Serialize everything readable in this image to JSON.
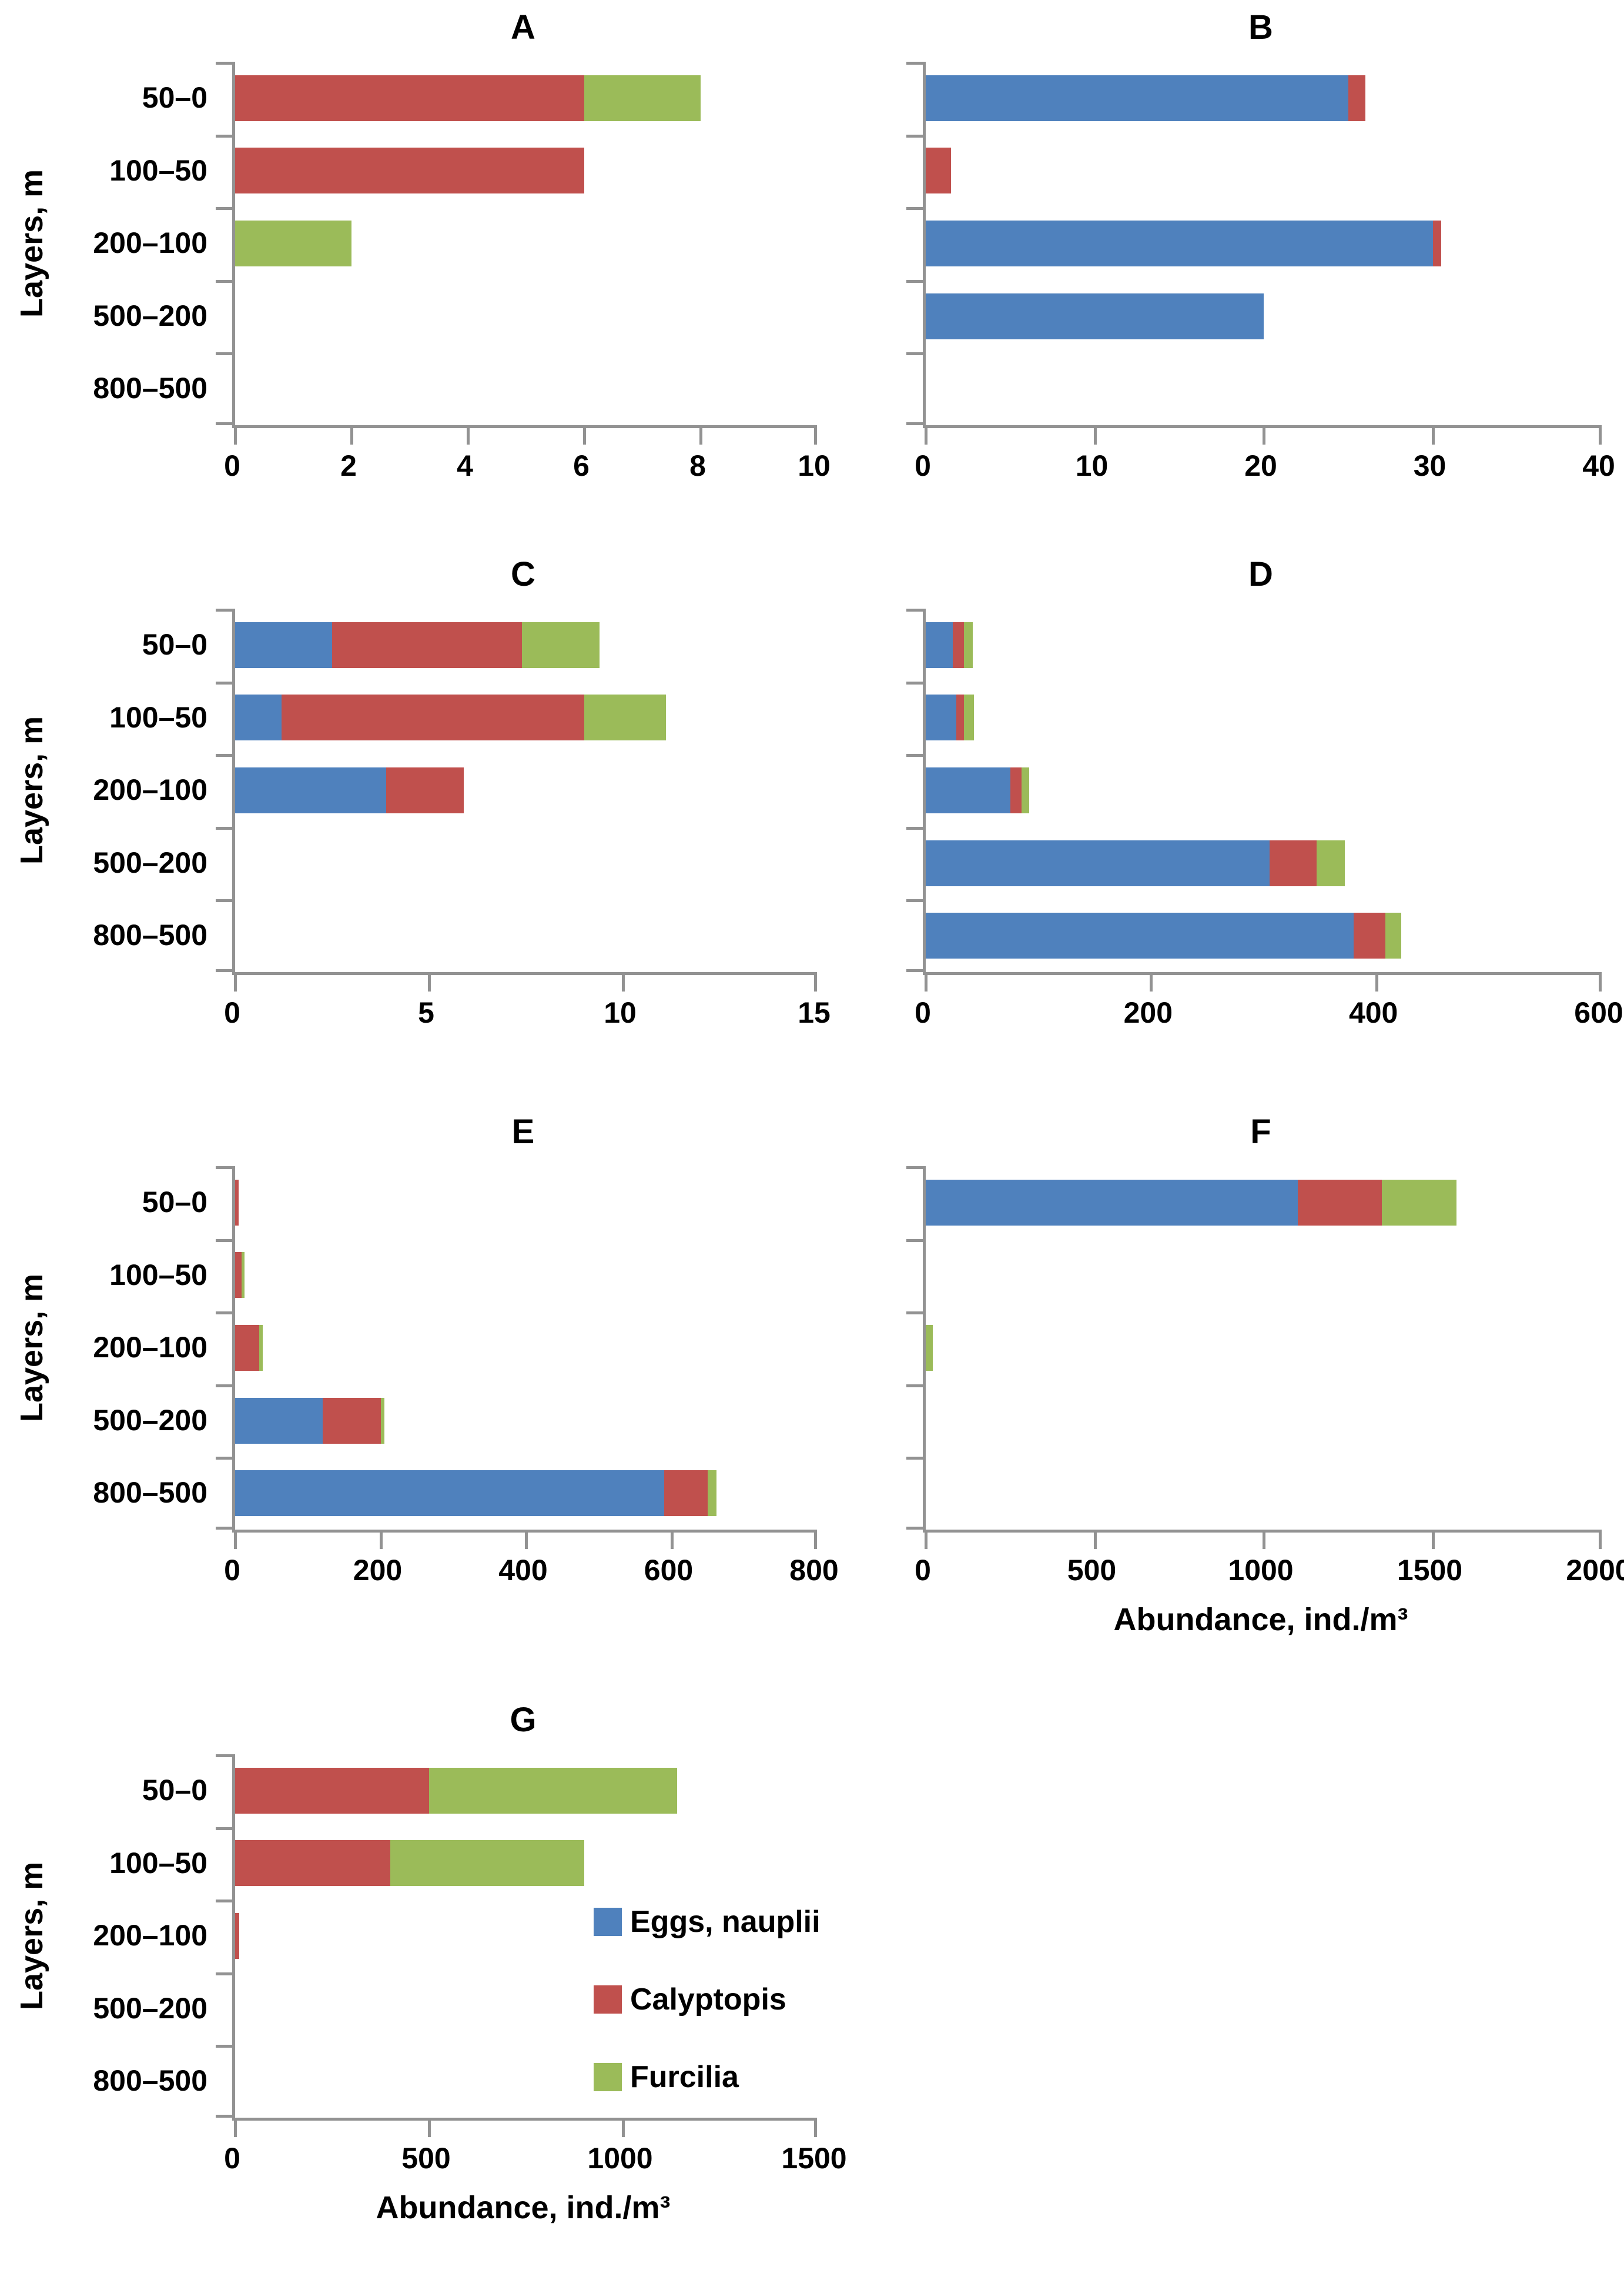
{
  "figure": {
    "ylabel": "Layers, m",
    "xlabel": "Abundance, ind./m³",
    "categories": [
      "50–0",
      "100–50",
      "200–100",
      "500–200",
      "800–500"
    ],
    "legend": [
      "Eggs, nauplii",
      "Calyptopis",
      "Furcilia"
    ],
    "colors": {
      "eggs": "#4F81BD",
      "calyptopis": "#C0504D",
      "furcilia": "#9BBB59",
      "axis": "#929292",
      "text": "#000000"
    }
  },
  "chart_data": [
    {
      "type": "bar",
      "orientation": "horizontal",
      "stacked": true,
      "title": "A",
      "xlim": [
        0,
        10
      ],
      "xticks": [
        0,
        2,
        4,
        6,
        8,
        10
      ],
      "categories": [
        "50–0",
        "100–50",
        "200–100",
        "500–200",
        "800–500"
      ],
      "series": [
        {
          "name": "Eggs, nauplii",
          "values": [
            0,
            0,
            0,
            0,
            0
          ]
        },
        {
          "name": "Calyptopis",
          "values": [
            6,
            6,
            0,
            0,
            0
          ]
        },
        {
          "name": "Furcilia",
          "values": [
            2,
            0,
            2,
            0,
            0
          ]
        }
      ],
      "show_ylabels": true,
      "show_xlabel": false,
      "show_legend": false
    },
    {
      "type": "bar",
      "orientation": "horizontal",
      "stacked": true,
      "title": "B",
      "xlim": [
        0,
        40
      ],
      "xticks": [
        0,
        10,
        20,
        30,
        40
      ],
      "categories": [
        "50–0",
        "100–50",
        "200–100",
        "500–200",
        "800–500"
      ],
      "series": [
        {
          "name": "Eggs, nauplii",
          "values": [
            25,
            0,
            30,
            20,
            0
          ]
        },
        {
          "name": "Calyptopis",
          "values": [
            1,
            1.5,
            0.5,
            0,
            0
          ]
        },
        {
          "name": "Furcilia",
          "values": [
            0,
            0,
            0,
            0,
            0
          ]
        }
      ],
      "show_ylabels": false,
      "show_xlabel": false,
      "show_legend": false
    },
    {
      "type": "bar",
      "orientation": "horizontal",
      "stacked": true,
      "title": "C",
      "xlim": [
        0,
        15
      ],
      "xticks": [
        0,
        5,
        10,
        15
      ],
      "categories": [
        "50–0",
        "100–50",
        "200–100",
        "500–200",
        "800–500"
      ],
      "series": [
        {
          "name": "Eggs, nauplii",
          "values": [
            2.5,
            1.2,
            3.9,
            0,
            0
          ]
        },
        {
          "name": "Calyptopis",
          "values": [
            4.9,
            7.8,
            2.0,
            0,
            0
          ]
        },
        {
          "name": "Furcilia",
          "values": [
            2.0,
            2.1,
            0,
            0,
            0
          ]
        }
      ],
      "show_ylabels": true,
      "show_xlabel": false,
      "show_legend": false
    },
    {
      "type": "bar",
      "orientation": "horizontal",
      "stacked": true,
      "title": "D",
      "xlim": [
        0,
        600
      ],
      "xticks": [
        0,
        200,
        400,
        600
      ],
      "categories": [
        "50–0",
        "100–50",
        "200–100",
        "500–200",
        "800–500"
      ],
      "series": [
        {
          "name": "Eggs, nauplii",
          "values": [
            24,
            27,
            75,
            305,
            380
          ]
        },
        {
          "name": "Calyptopis",
          "values": [
            10,
            7,
            10,
            42,
            28
          ]
        },
        {
          "name": "Furcilia",
          "values": [
            8,
            9,
            7,
            25,
            14
          ]
        }
      ],
      "show_ylabels": false,
      "show_xlabel": false,
      "show_legend": false
    },
    {
      "type": "bar",
      "orientation": "horizontal",
      "stacked": true,
      "title": "E",
      "xlim": [
        0,
        800
      ],
      "xticks": [
        0,
        200,
        400,
        600,
        800
      ],
      "categories": [
        "50–0",
        "100–50",
        "200–100",
        "500–200",
        "800–500"
      ],
      "series": [
        {
          "name": "Eggs, nauplii",
          "values": [
            0,
            0,
            0,
            120,
            590
          ]
        },
        {
          "name": "Calyptopis",
          "values": [
            5,
            9,
            33,
            80,
            60
          ]
        },
        {
          "name": "Furcilia",
          "values": [
            0,
            4,
            5,
            5,
            12
          ]
        }
      ],
      "show_ylabels": true,
      "show_xlabel": false,
      "show_legend": false
    },
    {
      "type": "bar",
      "orientation": "horizontal",
      "stacked": true,
      "title": "F",
      "xlim": [
        0,
        2000
      ],
      "xticks": [
        0,
        500,
        1000,
        1500,
        2000
      ],
      "categories": [
        "50–0",
        "100–50",
        "200–100",
        "500–200",
        "800–500"
      ],
      "series": [
        {
          "name": "Eggs, nauplii",
          "values": [
            1100,
            0,
            0,
            0,
            0
          ]
        },
        {
          "name": "Calyptopis",
          "values": [
            250,
            0,
            0,
            0,
            0
          ]
        },
        {
          "name": "Furcilia",
          "values": [
            220,
            0,
            20,
            0,
            0
          ]
        }
      ],
      "show_ylabels": false,
      "show_xlabel": true,
      "show_legend": false
    },
    {
      "type": "bar",
      "orientation": "horizontal",
      "stacked": true,
      "title": "G",
      "xlim": [
        0,
        1500
      ],
      "xticks": [
        0,
        500,
        1000,
        1500
      ],
      "categories": [
        "50–0",
        "100–50",
        "200–100",
        "500–200",
        "800–500"
      ],
      "series": [
        {
          "name": "Eggs, nauplii",
          "values": [
            0,
            0,
            0,
            0,
            0
          ]
        },
        {
          "name": "Calyptopis",
          "values": [
            500,
            400,
            10,
            0,
            0
          ]
        },
        {
          "name": "Furcilia",
          "values": [
            640,
            500,
            0,
            0,
            0
          ]
        }
      ],
      "show_ylabels": true,
      "show_xlabel": true,
      "show_legend": true
    }
  ]
}
